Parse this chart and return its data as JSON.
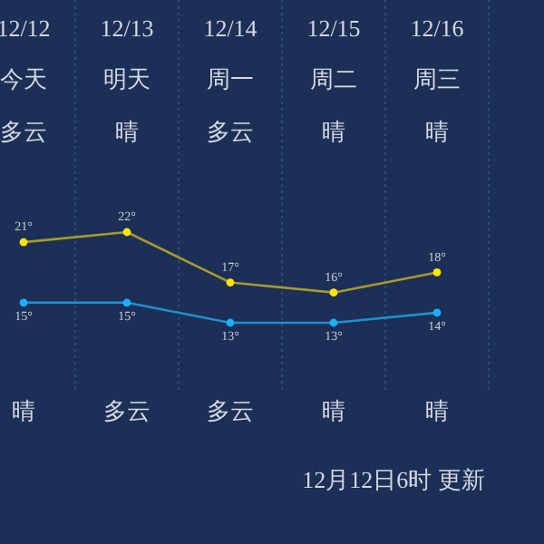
{
  "chart_data": {
    "type": "line",
    "categories": [
      "12/12",
      "12/13",
      "12/14",
      "12/15",
      "12/16"
    ],
    "series": [
      {
        "color": "#a89a2a",
        "values": [
          21,
          22,
          17,
          16,
          18
        ],
        "value_labels": [
          "21°",
          "22°",
          "17°",
          "16°",
          "18°"
        ]
      },
      {
        "color": "#1f8fcf",
        "values": [
          15,
          15,
          13,
          13,
          14
        ],
        "value_labels": [
          "15°",
          "15°",
          "13°",
          "13°",
          "14°"
        ]
      }
    ],
    "marker": "circle",
    "grid": "x",
    "annotations": [
      "今天",
      "明天",
      "周一",
      "周二",
      "周三",
      "多云",
      "晴",
      "多云",
      "晴",
      "晴",
      "晴",
      "多云",
      "多云",
      "晴",
      "晴",
      "12月12日6时 更新"
    ]
  }
}
